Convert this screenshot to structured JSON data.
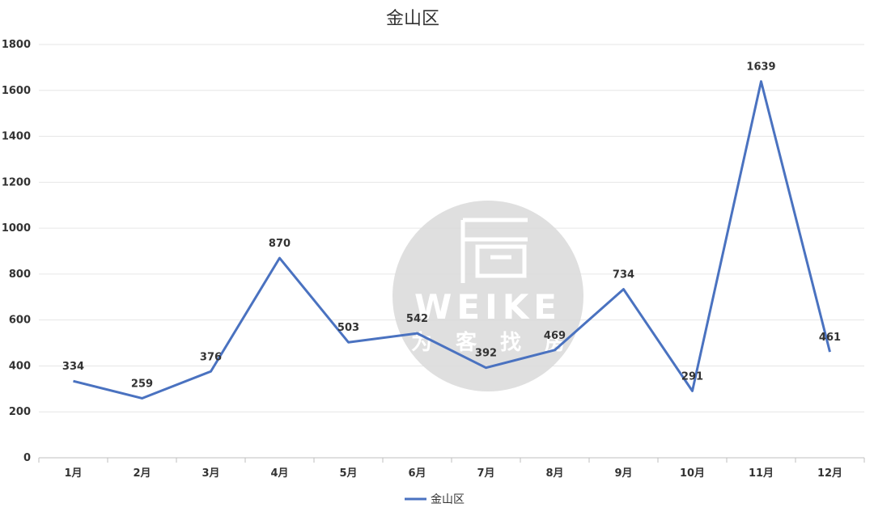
{
  "chart_data": {
    "type": "line",
    "title": "金山区",
    "categories": [
      "1月",
      "2月",
      "3月",
      "4月",
      "5月",
      "6月",
      "7月",
      "8月",
      "9月",
      "10月",
      "11月",
      "12月"
    ],
    "series": [
      {
        "name": "金山区",
        "color": "#4a72c0",
        "values": [
          334,
          259,
          376,
          870,
          503,
          542,
          392,
          469,
          734,
          291,
          1639,
          461
        ]
      }
    ],
    "ylim": [
      0,
      1800
    ],
    "yticks": [
      0,
      200,
      400,
      600,
      800,
      1000,
      1200,
      1400,
      1600,
      1800
    ],
    "grid": true,
    "legend": "bottom",
    "watermark": {
      "brand": "WEIKE",
      "subtitle_chars": [
        "为",
        "客",
        "找",
        "房"
      ],
      "icon": "house-logo-icon"
    }
  }
}
